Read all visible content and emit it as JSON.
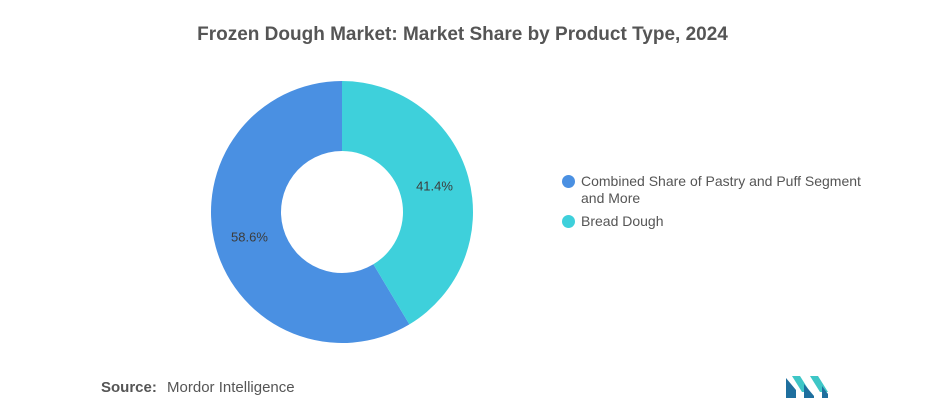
{
  "chart_data": {
    "type": "pie",
    "title": "Frozen Dough Market: Market Share by Product Type, 2024",
    "donut": true,
    "categories": [
      "Combined Share of Pastry and Puff Segment and More",
      "Bread Dough"
    ],
    "values": [
      58.6,
      41.4
    ],
    "labels": [
      "58.6%",
      "41.4%"
    ],
    "colors": [
      "#4a90e2",
      "#3ed0db"
    ],
    "legend_position": "right"
  },
  "legend": {
    "items": [
      {
        "label": "Combined Share of Pastry and Puff Segment and More",
        "color": "#4a90e2"
      },
      {
        "label": "Bread Dough",
        "color": "#3ed0db"
      }
    ]
  },
  "source": {
    "label": "Source:",
    "text": "Mordor Intelligence"
  },
  "logo": {
    "icon": "mordor-intelligence-logo-icon",
    "colors": [
      "#1f6f9e",
      "#3ec6c6"
    ]
  }
}
